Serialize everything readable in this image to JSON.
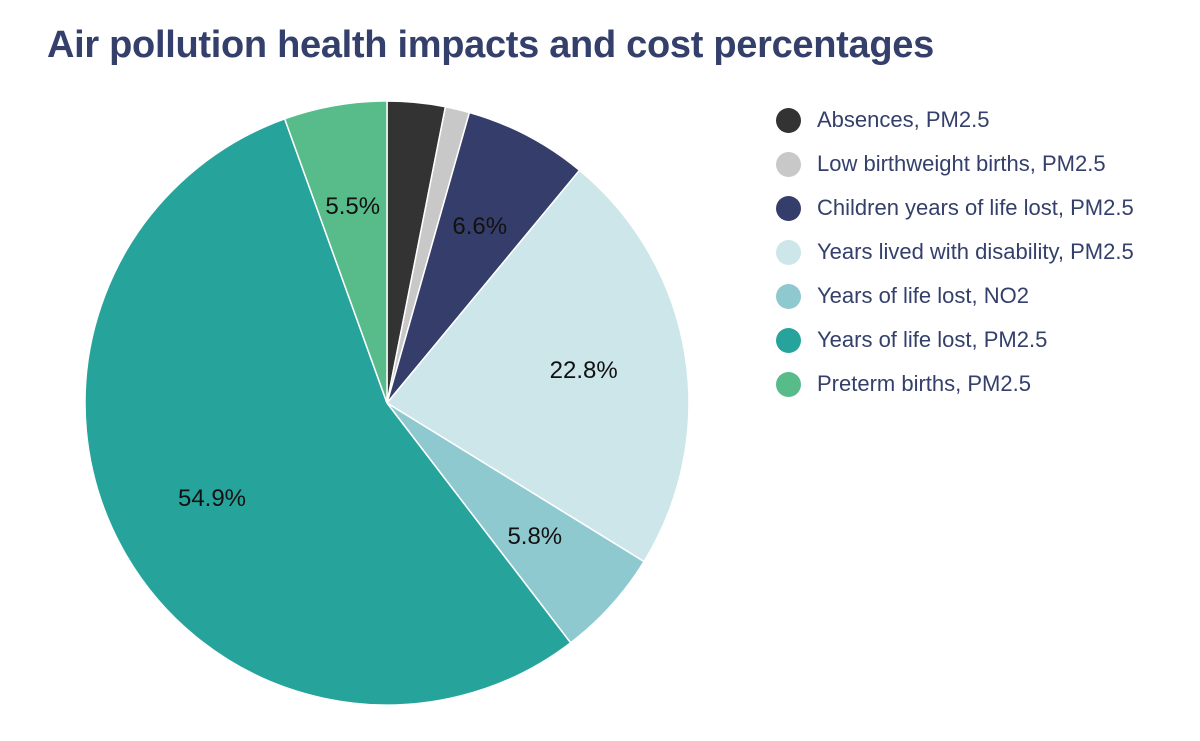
{
  "chart_data": {
    "type": "pie",
    "title": "Air pollution health impacts and cost percentages",
    "slices": [
      {
        "label": "Absences, PM2.5",
        "value": 3.1,
        "display": "",
        "color": "#333333"
      },
      {
        "label": "Low birthweight births, PM2.5",
        "value": 1.3,
        "display": "",
        "color": "#c8c8c8"
      },
      {
        "label": "Children years of life lost, PM2.5",
        "value": 6.6,
        "display": "6.6%",
        "color": "#353e6b"
      },
      {
        "label": "Years lived with disability, PM2.5",
        "value": 22.8,
        "display": "22.8%",
        "color": "#cde6ea"
      },
      {
        "label": "Years of life lost, NO2",
        "value": 5.8,
        "display": "5.8%",
        "color": "#8fc9d0"
      },
      {
        "label": "Years of life lost, PM2.5",
        "value": 54.9,
        "display": "54.9%",
        "color": "#26a49b"
      },
      {
        "label": "Preterm births, PM2.5",
        "value": 5.5,
        "display": "5.5%",
        "color": "#57bb8a"
      }
    ],
    "legend_position": "right",
    "start_angle": "12 o'clock",
    "direction": "clockwise"
  }
}
